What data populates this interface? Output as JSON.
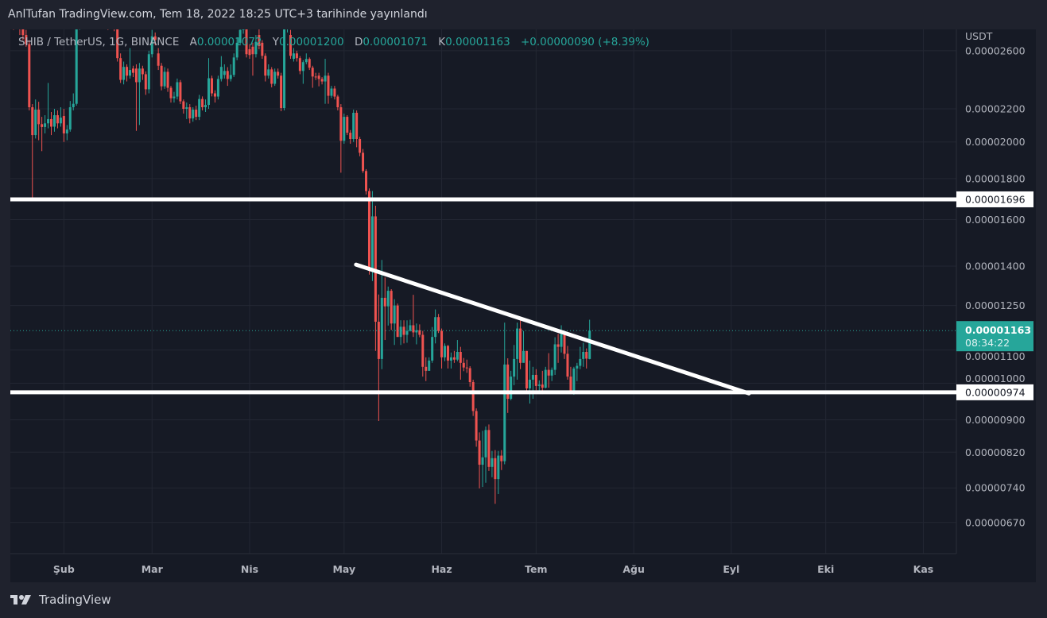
{
  "published": "AnlTufan TradingView.com, Tem 18, 2022 18:25 UTC+3 tarihinde yayınlandı",
  "legend": {
    "symbol": "SHIB / TetherUS, 1G, BINANCE",
    "open_label": "A",
    "open": "0.00001072",
    "high_label": "Y",
    "high": "0.00001200",
    "low_label": "D",
    "low": "0.00001071",
    "close_label": "K",
    "close": "0.00001163",
    "change": "+0.00000090 (+8.39%)"
  },
  "brand": "TradingView",
  "colors": {
    "up": "#26a69a",
    "down": "#ef5350",
    "drawing": "#ffffff",
    "background": "#161a25"
  },
  "chart_data": {
    "type": "candlestick",
    "title": "SHIB / TetherUS, 1G, BINANCE",
    "price_unit": "1e-8 USDT",
    "y_scale": "log",
    "ylabel": "USDT",
    "yticks": [
      "0.00002600",
      "0.00002200",
      "0.00002000",
      "0.00001800",
      "0.00001600",
      "0.00001400",
      "0.00001250",
      "0.00001100",
      "0.00001000",
      "0.00000900",
      "0.00000820",
      "0.00000740",
      "0.00000670"
    ],
    "xticks": [
      {
        "label": "Şub",
        "index": 16
      },
      {
        "label": "Mar",
        "index": 44
      },
      {
        "label": "Nis",
        "index": 75
      },
      {
        "label": "May",
        "index": 105
      },
      {
        "label": "Haz",
        "index": 136
      },
      {
        "label": "Tem",
        "index": 166
      },
      {
        "label": "Ağu",
        "index": 197
      },
      {
        "label": "Eyl",
        "index": 228
      },
      {
        "label": "Eki",
        "index": 258
      },
      {
        "label": "Kas",
        "index": 289
      }
    ],
    "first_candle_date": "2022-01-16",
    "candles_ohlc": [
      [
        2850,
        2900,
        2760,
        2800
      ],
      [
        2800,
        2880,
        2770,
        2830
      ],
      [
        2830,
        2860,
        2720,
        2770
      ],
      [
        2770,
        2800,
        2680,
        2720
      ],
      [
        2720,
        2760,
        2630,
        2650
      ],
      [
        2650,
        2680,
        2190,
        2210
      ],
      [
        2210,
        2230,
        1698,
        2040
      ],
      [
        2040,
        2260,
        2020,
        2195
      ],
      [
        2195,
        2245,
        2010,
        2105
      ],
      [
        2105,
        2150,
        1948,
        2088
      ],
      [
        2088,
        2160,
        2050,
        2110
      ],
      [
        2110,
        2370,
        2080,
        2136
      ],
      [
        2136,
        2180,
        2040,
        2090
      ],
      [
        2090,
        2200,
        2060,
        2160
      ],
      [
        2160,
        2190,
        2080,
        2110
      ],
      [
        2110,
        2210,
        2090,
        2145
      ],
      [
        2155,
        2200,
        2000,
        2050
      ],
      [
        2050,
        2100,
        2010,
        2073
      ],
      [
        2073,
        2250,
        2060,
        2210
      ],
      [
        2210,
        2300,
        2190,
        2232
      ],
      [
        2232,
        2900,
        2220,
        2800
      ],
      [
        2800,
        3000,
        2760,
        2950
      ],
      [
        2950,
        3500,
        2900,
        3300
      ],
      [
        3300,
        3450,
        3000,
        3100
      ],
      [
        3100,
        3200,
        2900,
        3000
      ],
      [
        3000,
        3150,
        2920,
        3050
      ],
      [
        3050,
        3100,
        2820,
        2900
      ],
      [
        2900,
        2950,
        2780,
        2850
      ],
      [
        2850,
        3000,
        2800,
        2950
      ],
      [
        2950,
        2990,
        2800,
        2880
      ],
      [
        2880,
        2920,
        2760,
        2800
      ],
      [
        2800,
        2920,
        2770,
        2870
      ],
      [
        2870,
        2900,
        2750,
        2780
      ],
      [
        2780,
        2820,
        2520,
        2545
      ],
      [
        2545,
        2580,
        2370,
        2391
      ],
      [
        2391,
        2520,
        2360,
        2482
      ],
      [
        2482,
        2500,
        2380,
        2420
      ],
      [
        2420,
        2620,
        2400,
        2460
      ],
      [
        2470,
        2490,
        2410,
        2440
      ],
      [
        2470,
        2500,
        2065,
        2375
      ],
      [
        2375,
        2510,
        2100,
        2470
      ],
      [
        2470,
        2490,
        2390,
        2430
      ],
      [
        2430,
        2450,
        2290,
        2327
      ],
      [
        2327,
        2600,
        2300,
        2574
      ],
      [
        2574,
        2760,
        2550,
        2710
      ],
      [
        2710,
        2740,
        2640,
        2683
      ],
      [
        2580,
        2620,
        2460,
        2490
      ],
      [
        2490,
        2510,
        2320,
        2347
      ],
      [
        2347,
        2480,
        2330,
        2447
      ],
      [
        2447,
        2470,
        2310,
        2337
      ],
      [
        2337,
        2350,
        2240,
        2268
      ],
      [
        2268,
        2310,
        2240,
        2279
      ],
      [
        2279,
        2400,
        2260,
        2375
      ],
      [
        2375,
        2390,
        2230,
        2248
      ],
      [
        2248,
        2260,
        2170,
        2200
      ],
      [
        2200,
        2240,
        2136,
        2210
      ],
      [
        2210,
        2230,
        2110,
        2140
      ],
      [
        2140,
        2210,
        2120,
        2195
      ],
      [
        2195,
        2220,
        2130,
        2150
      ],
      [
        2150,
        2290,
        2130,
        2263
      ],
      [
        2263,
        2280,
        2190,
        2210
      ],
      [
        2210,
        2260,
        2180,
        2225
      ],
      [
        2225,
        2545,
        2200,
        2402
      ],
      [
        2402,
        2420,
        2280,
        2300
      ],
      [
        2300,
        2320,
        2240,
        2279
      ],
      [
        2279,
        2420,
        2260,
        2397
      ],
      [
        2397,
        2560,
        2380,
        2482
      ],
      [
        2425,
        2500,
        2400,
        2453
      ],
      [
        2453,
        2480,
        2350,
        2397
      ],
      [
        2397,
        2500,
        2380,
        2425
      ],
      [
        2425,
        2580,
        2410,
        2550
      ],
      [
        2550,
        2700,
        2530,
        2660
      ],
      [
        2660,
        2800,
        2640,
        2760
      ],
      [
        2760,
        2950,
        2730,
        2850
      ],
      [
        2850,
        2900,
        2550,
        2574
      ],
      [
        2611,
        2650,
        2540,
        2568
      ],
      [
        2630,
        2660,
        2420,
        2574
      ],
      [
        2574,
        2720,
        2550,
        2667
      ],
      [
        2720,
        2780,
        2610,
        2635
      ],
      [
        2660,
        2680,
        2540,
        2562
      ],
      [
        2562,
        2580,
        2380,
        2420
      ],
      [
        2420,
        2500,
        2400,
        2464
      ],
      [
        2464,
        2480,
        2340,
        2364
      ],
      [
        2364,
        2470,
        2350,
        2447
      ],
      [
        2447,
        2470,
        2400,
        2420
      ],
      [
        2420,
        2440,
        2185,
        2205
      ],
      [
        2205,
        2850,
        2190,
        2780
      ],
      [
        2780,
        2900,
        2740,
        2820
      ],
      [
        2720,
        2760,
        2540,
        2562
      ],
      [
        2540,
        2620,
        2520,
        2580
      ],
      [
        2580,
        2600,
        2520,
        2545
      ],
      [
        2545,
        2560,
        2430,
        2453
      ],
      [
        2453,
        2530,
        2364,
        2516
      ],
      [
        2516,
        2580,
        2500,
        2539
      ],
      [
        2539,
        2550,
        2460,
        2476
      ],
      [
        2476,
        2490,
        2337,
        2414
      ],
      [
        2414,
        2440,
        2390,
        2408
      ],
      [
        2420,
        2440,
        2347,
        2397
      ],
      [
        2397,
        2410,
        2360,
        2380
      ],
      [
        2380,
        2540,
        2232,
        2420
      ],
      [
        2420,
        2440,
        2232,
        2284
      ],
      [
        2284,
        2350,
        2270,
        2332
      ],
      [
        2332,
        2350,
        2260,
        2279
      ],
      [
        2279,
        2290,
        2190,
        2210
      ],
      [
        2210,
        2230,
        1831,
        2007
      ],
      [
        2007,
        2170,
        1990,
        2150
      ],
      [
        2150,
        2160,
        2040,
        2054
      ],
      [
        2054,
        2070,
        1990,
        2017
      ],
      [
        2017,
        2195,
        2000,
        2175
      ],
      [
        2175,
        2190,
        1970,
        2017
      ],
      [
        2017,
        2030,
        1920,
        1939
      ],
      [
        1939,
        1960,
        1830,
        1840
      ],
      [
        1840,
        1850,
        1720,
        1737
      ],
      [
        1737,
        1750,
        1366,
        1381
      ],
      [
        1390,
        1737,
        1341,
        1615
      ],
      [
        1615,
        1665,
        1097,
        1193
      ],
      [
        1193,
        1290,
        897,
        1072
      ],
      [
        1072,
        1425,
        1041,
        1278
      ],
      [
        1278,
        1355,
        1132,
        1247
      ],
      [
        1247,
        1320,
        1180,
        1304
      ],
      [
        1304,
        1310,
        1165,
        1187
      ],
      [
        1187,
        1273,
        1116,
        1250
      ],
      [
        1250,
        1257,
        1142,
        1142
      ],
      [
        1142,
        1198,
        1116,
        1176
      ],
      [
        1176,
        1198,
        1121,
        1149
      ],
      [
        1149,
        1198,
        1123,
        1162
      ],
      [
        1162,
        1200,
        1160,
        1181
      ],
      [
        1181,
        1289,
        1142,
        1157
      ],
      [
        1157,
        1187,
        1118,
        1164
      ],
      [
        1164,
        1184,
        1141,
        1149
      ],
      [
        1149,
        1162,
        1019,
        1048
      ],
      [
        1048,
        1077,
        1006,
        1036
      ],
      [
        1036,
        1077,
        1036,
        1067
      ],
      [
        1067,
        1175,
        1060,
        1142
      ],
      [
        1142,
        1236,
        1121,
        1209
      ],
      [
        1209,
        1220,
        1155,
        1162
      ],
      [
        1162,
        1170,
        1043,
        1077
      ],
      [
        1077,
        1121,
        1065,
        1113
      ],
      [
        1113,
        1116,
        1043,
        1067
      ],
      [
        1067,
        1092,
        1043,
        1077
      ],
      [
        1077,
        1097,
        1060,
        1070
      ],
      [
        1070,
        1132,
        1065,
        1094
      ],
      [
        1094,
        1110,
        1010,
        1060
      ],
      [
        1060,
        1075,
        1035,
        1046
      ],
      [
        1046,
        1070,
        1030,
        1044
      ],
      [
        1044,
        1050,
        990,
        1003
      ],
      [
        1003,
        1010,
        910,
        923
      ],
      [
        923,
        930,
        833,
        848
      ],
      [
        848,
        868,
        739,
        791
      ],
      [
        791,
        872,
        742,
        808
      ],
      [
        808,
        883,
        751,
        874
      ],
      [
        874,
        888,
        777,
        786
      ],
      [
        786,
        823,
        763,
        806
      ],
      [
        806,
        825,
        707,
        759
      ],
      [
        759,
        823,
        727,
        812
      ],
      [
        812,
        825,
        779,
        799
      ],
      [
        799,
        1190,
        792,
        1055
      ],
      [
        1055,
        1074,
        918,
        956
      ],
      [
        956,
        1036,
        952,
        1019
      ],
      [
        1019,
        1116,
        994,
        1072
      ],
      [
        1072,
        1190,
        1010,
        1170
      ],
      [
        1170,
        1206,
        1041,
        1060
      ],
      [
        1060,
        1162,
        1067,
        1097
      ],
      [
        1097,
        1097,
        976,
        985
      ],
      [
        985,
        1067,
        943,
        1010
      ],
      [
        1010,
        1048,
        956,
        1024
      ],
      [
        1024,
        1041,
        980,
        992
      ],
      [
        992,
        1008,
        978,
        996
      ],
      [
        996,
        1036,
        969,
        987
      ],
      [
        987,
        1048,
        985,
        1039
      ],
      [
        1039,
        1090,
        987,
        1022
      ],
      [
        1022,
        1046,
        1006,
        1039
      ],
      [
        1039,
        1141,
        1024,
        1118
      ],
      [
        1118,
        1152,
        1060,
        1110
      ],
      [
        1110,
        1181,
        1092,
        1152
      ],
      [
        1152,
        1157,
        1072,
        1088
      ],
      [
        1088,
        1113,
        1010,
        1019
      ],
      [
        1019,
        1048,
        969,
        978
      ],
      [
        978,
        1048,
        967,
        1043
      ],
      [
        1043,
        1060,
        1006,
        1051
      ],
      [
        1051,
        1110,
        1041,
        1072
      ],
      [
        1072,
        1123,
        1048,
        1094
      ],
      [
        1094,
        1105,
        1043,
        1073
      ],
      [
        1072,
        1200,
        1071,
        1163
      ]
    ],
    "horizontal_levels": [
      {
        "price": 1696,
        "label": "0.00001696"
      },
      {
        "price": 974,
        "label": "0.00000974"
      }
    ],
    "trendline": {
      "from": {
        "index": 108.8,
        "price": 1406
      },
      "to": {
        "index": 233.6,
        "price": 971
      }
    },
    "last_price": {
      "label": "0.00001163",
      "countdown": "08:34:22",
      "price": 1163
    }
  }
}
